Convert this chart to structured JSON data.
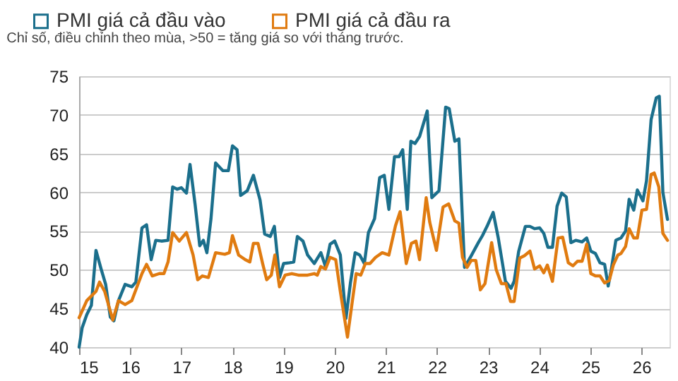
{
  "chart_data": {
    "type": "line",
    "subtitle": "Chỉ số, điều chỉnh theo mùa, >50 = tăng giá so với tháng trước.",
    "xlim": [
      15,
      26.55
    ],
    "xticks": [
      15,
      16,
      17,
      18,
      19,
      20,
      21,
      22,
      23,
      24,
      25,
      26
    ],
    "ylim": [
      40,
      75
    ],
    "yticks": [
      40,
      45,
      50,
      55,
      60,
      65,
      70,
      75
    ],
    "grid": "y",
    "legend": "top left",
    "line_style": "solid",
    "marker": "none",
    "series": [
      {
        "name": "PMI giá cả đầu vào",
        "color": "#1b6f8c",
        "x": [
          15.0,
          15.06,
          15.15,
          15.24,
          15.33,
          15.43,
          15.52,
          15.61,
          15.68,
          15.77,
          15.9,
          16.03,
          16.11,
          16.23,
          16.32,
          16.41,
          16.5,
          16.61,
          16.74,
          16.83,
          16.92,
          17.0,
          17.1,
          17.17,
          17.27,
          17.36,
          17.43,
          17.5,
          17.58,
          17.67,
          17.81,
          17.92,
          18.0,
          18.09,
          18.16,
          18.29,
          18.41,
          18.54,
          18.63,
          18.74,
          18.82,
          18.92,
          19.0,
          19.12,
          19.2,
          19.27,
          19.38,
          19.47,
          19.6,
          19.73,
          19.82,
          19.91,
          20.0,
          20.11,
          20.22,
          20.31,
          20.4,
          20.49,
          20.58,
          20.66,
          20.78,
          20.88,
          20.97,
          21.06,
          21.17,
          21.26,
          21.33,
          21.42,
          21.49,
          21.57,
          21.66,
          21.81,
          21.9,
          22.04,
          22.17,
          22.24,
          22.35,
          22.43,
          22.54,
          22.67,
          22.81,
          22.89,
          22.98,
          23.1,
          23.2,
          23.34,
          23.45,
          23.51,
          23.6,
          23.73,
          23.82,
          23.91,
          24.01,
          24.09,
          24.17,
          24.26,
          24.35,
          24.44,
          24.53,
          24.62,
          24.72,
          24.84,
          24.93,
          25.01,
          25.1,
          25.19,
          25.28,
          25.35,
          25.41,
          25.5,
          25.6,
          25.69,
          25.76,
          25.85,
          25.92,
          26.03,
          26.1,
          26.19,
          26.29,
          26.35,
          26.42,
          26.51
        ],
        "values": [
          40,
          42.5,
          44.2,
          45.4,
          52.5,
          50.1,
          48.1,
          43.9,
          43.4,
          46,
          48.1,
          47.8,
          48.4,
          55.4,
          55.8,
          51.3,
          53.8,
          53.7,
          53.8,
          60.7,
          60.4,
          60.6,
          59.9,
          63.6,
          58.4,
          53.1,
          53.8,
          52.2,
          56.6,
          63.8,
          62.8,
          62.8,
          66.0,
          65.5,
          59.6,
          60.2,
          62.2,
          59,
          54.6,
          54.3,
          55.6,
          49,
          50.8,
          50.9,
          51,
          54.3,
          53.7,
          51.9,
          50.8,
          52.2,
          50.4,
          53.3,
          53.7,
          51.9,
          43.7,
          48.4,
          52.2,
          51.9,
          50.8,
          54.8,
          56.6,
          61.9,
          62.2,
          57.8,
          64.6,
          64.6,
          65.5,
          57.8,
          66.6,
          66.3,
          67.2,
          70.5,
          59.3,
          60.2,
          71.0,
          70.8,
          66.6,
          66.9,
          50.3,
          51.8,
          53.5,
          54.4,
          55.6,
          57.4,
          54.1,
          48.5,
          47.6,
          48.5,
          52.4,
          55.6,
          55.6,
          55.3,
          55.4,
          54.7,
          52.9,
          52.9,
          58.2,
          59.9,
          59.4,
          53.5,
          53.8,
          53.6,
          54.1,
          52.4,
          52.1,
          50.9,
          50.7,
          47.9,
          50.0,
          53.8,
          54.1,
          55.0,
          59.1,
          57.7,
          60.3,
          58.9,
          61.5,
          69.4,
          72.2,
          72.4,
          60.0,
          56.5
        ]
      },
      {
        "name": "PMI giá cả đầu ra",
        "color": "#e07b10",
        "x": [
          15.0,
          15.15,
          15.33,
          15.4,
          15.5,
          15.66,
          15.77,
          15.9,
          16.03,
          16.23,
          16.32,
          16.43,
          16.57,
          16.66,
          16.74,
          16.83,
          16.96,
          17.1,
          17.23,
          17.32,
          17.41,
          17.53,
          17.67,
          17.85,
          17.94,
          18.0,
          18.12,
          18.25,
          18.34,
          18.41,
          18.5,
          18.59,
          18.67,
          18.76,
          18.83,
          18.92,
          19.03,
          19.16,
          19.29,
          19.47,
          19.6,
          19.66,
          19.73,
          19.82,
          19.91,
          20.02,
          20.11,
          20.25,
          20.34,
          20.42,
          20.51,
          20.6,
          20.69,
          20.8,
          20.93,
          21.06,
          21.19,
          21.28,
          21.4,
          21.5,
          21.59,
          21.66,
          21.79,
          21.86,
          21.99,
          22.12,
          22.23,
          22.35,
          22.43,
          22.5,
          22.59,
          22.67,
          22.76,
          22.85,
          22.94,
          23.07,
          23.16,
          23.26,
          23.35,
          23.44,
          23.51,
          23.62,
          23.71,
          23.82,
          23.91,
          24.01,
          24.09,
          24.16,
          24.26,
          24.37,
          24.46,
          24.57,
          24.66,
          24.75,
          24.84,
          24.93,
          25.01,
          25.1,
          25.19,
          25.28,
          25.37,
          25.45,
          25.54,
          25.6,
          25.69,
          25.76,
          25.85,
          25.92,
          26.01,
          26.1,
          26.19,
          26.25,
          26.34,
          26.42,
          26.51
        ],
        "values": [
          43.8,
          46,
          47.2,
          48.4,
          47.2,
          43.5,
          46,
          45.5,
          46,
          49.5,
          50.7,
          49.2,
          49.5,
          49.5,
          51,
          54.8,
          53.7,
          54.8,
          51.9,
          48.7,
          49.2,
          49,
          52.2,
          52,
          52.2,
          54.4,
          51.9,
          51.3,
          51,
          53.4,
          53.4,
          50.8,
          48.7,
          49.3,
          51.9,
          47.8,
          49.3,
          49.5,
          49.3,
          49.3,
          49.5,
          49.3,
          50.4,
          50.1,
          51.6,
          51.3,
          47.2,
          41.3,
          45.7,
          49.5,
          49.3,
          50.8,
          50.8,
          51.6,
          52.2,
          51.9,
          55.7,
          57.5,
          50.8,
          53.4,
          53.7,
          51.3,
          59.3,
          56.1,
          52.5,
          58.1,
          58.5,
          56.3,
          56.0,
          51.6,
          50.3,
          51.2,
          51.2,
          47.4,
          48.2,
          53.5,
          50.0,
          48.2,
          48.2,
          45.9,
          45.9,
          51.5,
          51.8,
          52.4,
          50.1,
          50.5,
          49.6,
          50.6,
          48.5,
          54.1,
          54.2,
          50.9,
          50.5,
          51.1,
          51.1,
          53.3,
          49.5,
          49.2,
          49.2,
          48.3,
          48.6,
          50.6,
          51.9,
          52.1,
          53.0,
          55.3,
          54.1,
          54.1,
          57.7,
          57.8,
          62.3,
          62.5,
          60.7,
          54.7,
          53.8
        ]
      }
    ]
  }
}
